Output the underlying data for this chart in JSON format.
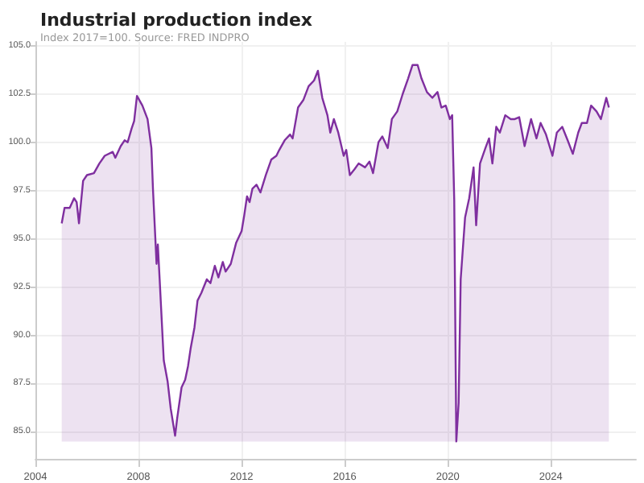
{
  "chart_data": {
    "type": "area",
    "title": "Industrial production index",
    "subtitle": "Index 2017=100. Source: FRED INDPRO",
    "x": [
      2005.02,
      2005.13,
      2005.33,
      2005.5,
      2005.6,
      2005.69,
      2005.85,
      2006.0,
      2006.27,
      2006.48,
      2006.69,
      2007.0,
      2007.1,
      2007.31,
      2007.46,
      2007.58,
      2007.73,
      2007.83,
      2007.94,
      2008.15,
      2008.35,
      2008.5,
      2008.56,
      2008.7,
      2008.75,
      2008.82,
      2008.98,
      2009.13,
      2009.25,
      2009.42,
      2009.5,
      2009.67,
      2009.81,
      2009.92,
      2010.02,
      2010.17,
      2010.29,
      2010.44,
      2010.65,
      2010.79,
      2010.96,
      2011.1,
      2011.27,
      2011.38,
      2011.58,
      2011.79,
      2012.0,
      2012.1,
      2012.21,
      2012.31,
      2012.42,
      2012.58,
      2012.73,
      2012.94,
      2013.15,
      2013.35,
      2013.46,
      2013.67,
      2013.88,
      2013.98,
      2014.19,
      2014.4,
      2014.6,
      2014.81,
      2014.96,
      2015.13,
      2015.33,
      2015.44,
      2015.58,
      2015.75,
      2015.96,
      2016.06,
      2016.2,
      2016.38,
      2016.54,
      2016.79,
      2016.96,
      2017.1,
      2017.31,
      2017.46,
      2017.67,
      2017.83,
      2018.04,
      2018.25,
      2018.46,
      2018.63,
      2018.83,
      2018.98,
      2019.19,
      2019.4,
      2019.6,
      2019.75,
      2019.92,
      2020.08,
      2020.17,
      2020.25,
      2020.33,
      2020.42,
      2020.5,
      2020.67,
      2020.83,
      2021.0,
      2021.1,
      2021.25,
      2021.46,
      2021.6,
      2021.73,
      2021.88,
      2022.02,
      2022.23,
      2022.44,
      2022.6,
      2022.77,
      2022.98,
      2023.23,
      2023.44,
      2023.6,
      2023.81,
      2024.06,
      2024.23,
      2024.44,
      2024.65,
      2024.85,
      2025.06,
      2025.2,
      2025.4,
      2025.56,
      2025.77,
      2025.94,
      2026.15,
      2026.25
    ],
    "series": [
      {
        "color": "#7f2f9f",
        "values": [
          95.8,
          96.6,
          96.6,
          97.1,
          96.9,
          95.8,
          98.0,
          98.3,
          98.4,
          98.9,
          99.3,
          99.5,
          99.2,
          99.8,
          100.1,
          100.0,
          100.7,
          101.1,
          102.4,
          101.9,
          101.2,
          99.7,
          97.6,
          93.7,
          94.7,
          92.9,
          88.7,
          87.6,
          86.2,
          84.8,
          85.7,
          87.3,
          87.7,
          88.4,
          89.3,
          90.4,
          91.8,
          92.2,
          92.9,
          92.7,
          93.6,
          93.0,
          93.8,
          93.3,
          93.7,
          94.8,
          95.4,
          96.2,
          97.2,
          96.9,
          97.6,
          97.8,
          97.4,
          98.3,
          99.1,
          99.3,
          99.6,
          100.1,
          100.4,
          100.2,
          101.8,
          102.2,
          102.9,
          103.2,
          103.7,
          102.3,
          101.4,
          100.5,
          101.2,
          100.5,
          99.3,
          99.6,
          98.3,
          98.6,
          98.9,
          98.7,
          99.0,
          98.4,
          100.0,
          100.3,
          99.7,
          101.2,
          101.6,
          102.5,
          103.3,
          104.0,
          104.0,
          103.3,
          102.6,
          102.3,
          102.6,
          101.8,
          101.9,
          101.2,
          101.4,
          97.0,
          84.5,
          86.5,
          92.9,
          96.1,
          97.1,
          98.7,
          95.7,
          98.9,
          99.7,
          100.2,
          98.9,
          100.8,
          100.5,
          101.4,
          101.2,
          101.2,
          101.3,
          99.8,
          101.2,
          100.2,
          101.0,
          100.4,
          99.3,
          100.5,
          100.8,
          100.1,
          99.4,
          100.5,
          101.0,
          101.0,
          101.9,
          101.6,
          101.2,
          102.3,
          101.8
        ]
      }
    ],
    "xlim": [
      2004,
      2027.3
    ],
    "xticks": [
      2004,
      2008,
      2012,
      2016,
      2020,
      2024
    ],
    "ylim": [
      83.6,
      105.2
    ],
    "yticks": [
      {
        "value": 85,
        "label": "85.0"
      },
      {
        "value": 87.5,
        "label": "87.5"
      },
      {
        "value": 90,
        "label": "90.0"
      },
      {
        "value": 92.5,
        "label": "92.5"
      },
      {
        "value": 95,
        "label": "95.0"
      },
      {
        "value": 97.5,
        "label": "97.5"
      },
      {
        "value": 100,
        "label": "100.0"
      },
      {
        "value": 102.5,
        "label": "102.5"
      },
      {
        "value": 105,
        "label": "105.0"
      }
    ],
    "grid": true
  }
}
